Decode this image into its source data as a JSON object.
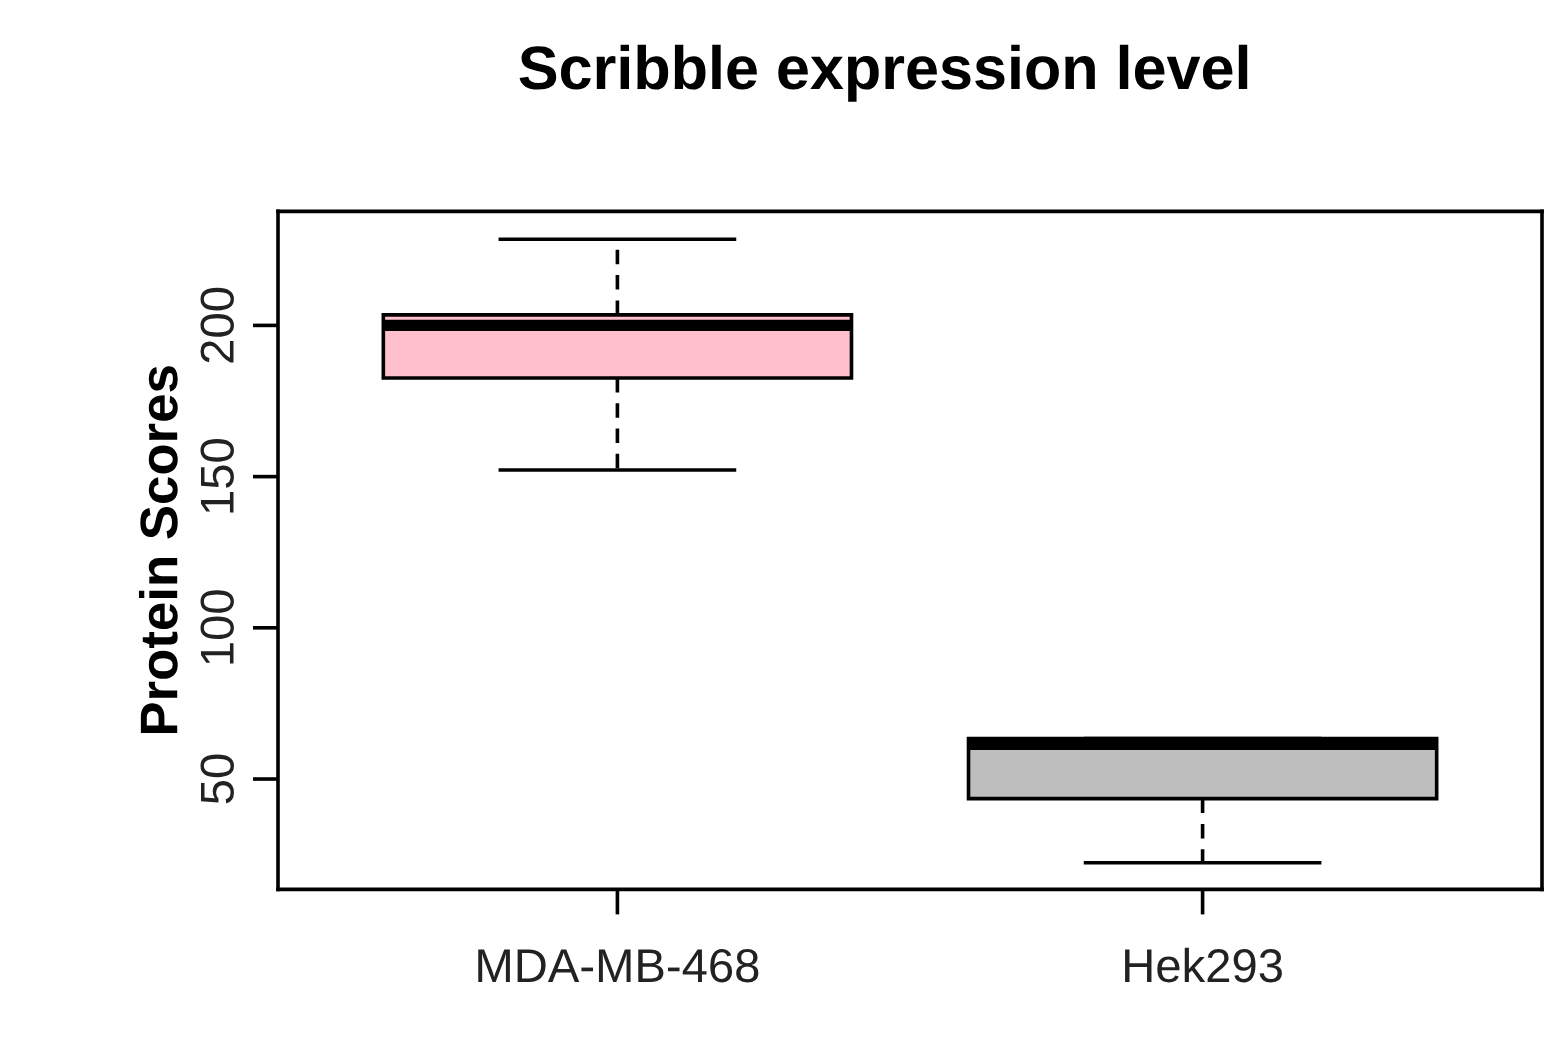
{
  "chart_data": {
    "type": "box",
    "title": "Scribble expression level",
    "ylabel": "Protein Scores",
    "categories": [
      "MDA-MB-468",
      "Hek293"
    ],
    "boxes": [
      {
        "low": 152.2,
        "q1": 182.6,
        "median": 200,
        "q3": 203.5,
        "high": 228.5
      },
      {
        "low": 22.3,
        "q1": 43.5,
        "median": 61.4,
        "q3": 63.4,
        "high": 63.4
      }
    ],
    "colors": [
      "#ffc0cb",
      "#bebebe"
    ],
    "ylim": [
      13.5,
      237.7
    ],
    "yticks": [
      50,
      100,
      150,
      200
    ],
    "grid": false,
    "legend": false
  }
}
